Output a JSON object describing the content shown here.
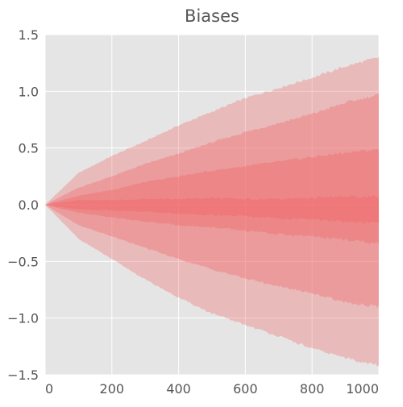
{
  "chart_data": {
    "type": "area",
    "title": "Biases",
    "xlabel": "",
    "ylabel": "",
    "xlim": [
      0,
      1000
    ],
    "ylim": [
      -1.5,
      1.5
    ],
    "x_ticks": [
      "0",
      "200",
      "400",
      "600",
      "800",
      "1000"
    ],
    "y_ticks": [
      "1.5",
      "1.0",
      "0.5",
      "0.0",
      "−0.5",
      "−1.0",
      "−1.5"
    ],
    "grid": true,
    "legend": "none",
    "colors": {
      "plot_background": "#e5e5e5",
      "grid": "#ffffff",
      "band_fill": "#f0696b"
    },
    "x": [
      0,
      100,
      200,
      300,
      400,
      500,
      600,
      700,
      800,
      900,
      1000
    ],
    "bands": [
      {
        "upper": [
          0.0,
          0.28,
          0.43,
          0.56,
          0.7,
          0.82,
          0.94,
          1.03,
          1.12,
          1.22,
          1.3
        ],
        "lower": [
          0.0,
          -0.3,
          -0.48,
          -0.66,
          -0.82,
          -0.96,
          -1.06,
          -1.16,
          -1.27,
          -1.35,
          -1.42
        ]
      },
      {
        "upper": [
          0.0,
          0.15,
          0.25,
          0.36,
          0.45,
          0.55,
          0.64,
          0.72,
          0.8,
          0.9,
          0.97
        ],
        "lower": [
          0.0,
          -0.18,
          -0.28,
          -0.38,
          -0.48,
          -0.57,
          -0.65,
          -0.72,
          -0.78,
          -0.86,
          -0.9
        ]
      },
      {
        "upper": [
          0.0,
          0.08,
          0.13,
          0.2,
          0.25,
          0.3,
          0.34,
          0.38,
          0.42,
          0.46,
          0.49
        ],
        "lower": [
          0.0,
          -0.07,
          -0.11,
          -0.15,
          -0.18,
          -0.2,
          -0.23,
          -0.26,
          -0.28,
          -0.31,
          -0.34
        ]
      },
      {
        "upper": [
          0.0,
          0.04,
          0.04,
          0.05,
          0.05,
          0.06,
          0.05,
          0.05,
          0.06,
          0.07,
          0.07
        ],
        "lower": [
          0.0,
          -0.04,
          -0.05,
          -0.06,
          -0.08,
          -0.09,
          -0.1,
          -0.12,
          -0.13,
          -0.15,
          -0.16
        ]
      }
    ]
  }
}
